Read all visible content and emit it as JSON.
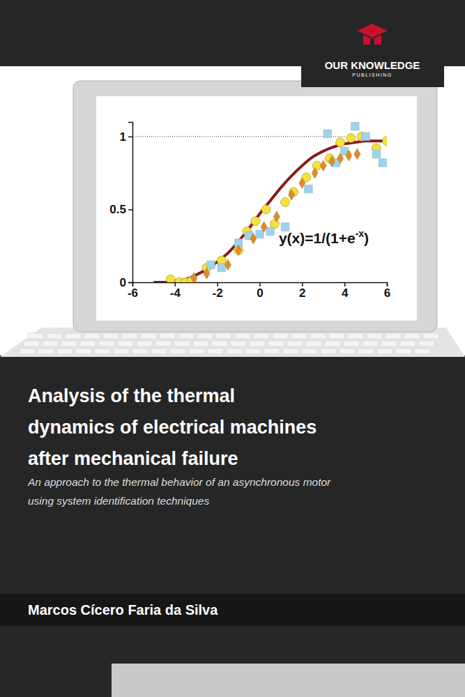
{
  "publisher": {
    "name": "OUR KNOWLEDGE",
    "tagline": "PUBLISHING"
  },
  "title": [
    "Analysis of the thermal",
    "dynamics of electrical machines",
    "after mechanical failure"
  ],
  "subtitle": [
    "An approach to the thermal behavior of an asynchronous motor",
    "using system identification techniques"
  ],
  "author": "Marcos Cícero Faria da Silva",
  "chart_data": {
    "type": "scatter",
    "annotation": {
      "text": "y(x)=1/(1+e",
      "superscript": "-x",
      "tail": ")"
    },
    "xlim": [
      -6,
      6
    ],
    "ylim": [
      0,
      1.1
    ],
    "xticks": [
      -6,
      -4,
      -2,
      0,
      2,
      4,
      6
    ],
    "yticks": [
      0,
      {
        "value": 0.5,
        "label": "0.5"
      },
      1
    ],
    "reference_line": {
      "y": 1,
      "line_style": "dotted"
    },
    "series": [
      {
        "type": "line",
        "color": "#8b1a1a",
        "line_style": "solid",
        "x": [
          -5,
          -4.5,
          -4,
          -3.5,
          -3,
          -2.5,
          -2,
          -1.5,
          -1,
          -0.5,
          0,
          0.5,
          1,
          1.5,
          2,
          2.5,
          3,
          3.5,
          4,
          4.5,
          5,
          5.5,
          6
        ],
        "values": [
          0,
          0,
          0.01,
          0.02,
          0.05,
          0.09,
          0.14,
          0.2,
          0.28,
          0.37,
          0.47,
          0.56,
          0.65,
          0.73,
          0.8,
          0.86,
          0.9,
          0.93,
          0.95,
          0.96,
          0.97,
          0.97,
          0.97
        ]
      },
      {
        "type": "scatter",
        "marker": "circle",
        "color": "#f3e23c",
        "x": [
          -4.2,
          -3.8,
          -3.5,
          -3.2,
          -2.5,
          -1.8,
          -1,
          -0.6,
          -0.2,
          0.3,
          0.7,
          1.2,
          1.6,
          2.2,
          2.7,
          3.3,
          3.8,
          4.3,
          4.8,
          5.5,
          6
        ],
        "values": [
          0.02,
          0,
          0,
          0.01,
          0.1,
          0.15,
          0.22,
          0.35,
          0.42,
          0.5,
          0.4,
          0.55,
          0.62,
          0.72,
          0.8,
          0.85,
          0.96,
          0.99,
          1.0,
          0.92,
          0.97
        ]
      },
      {
        "type": "scatter",
        "marker": "square",
        "color": "#9fd3ea",
        "x": [
          -2.3,
          -1.8,
          -1,
          -0.5,
          0,
          0.5,
          1.2,
          2.3,
          3.2,
          3.6,
          4,
          4.5,
          5,
          5.5,
          5.8
        ],
        "values": [
          0.12,
          0.1,
          0.27,
          0.32,
          0.33,
          0.35,
          0.38,
          0.64,
          1.02,
          0.82,
          0.9,
          1.07,
          1.0,
          0.88,
          0.82
        ]
      },
      {
        "type": "scatter",
        "marker": "diamond",
        "color": "#e08a2e",
        "x": [
          -3.1,
          -2.5,
          -1.5,
          -1,
          -0.3,
          0.2,
          0.8,
          1.5,
          2,
          2.6,
          3,
          3.4,
          3.8,
          4.2,
          4.6
        ],
        "values": [
          0.03,
          0.06,
          0.12,
          0.22,
          0.3,
          0.38,
          0.45,
          0.6,
          0.68,
          0.75,
          0.8,
          0.83,
          0.85,
          0.87,
          0.88
        ]
      }
    ]
  }
}
